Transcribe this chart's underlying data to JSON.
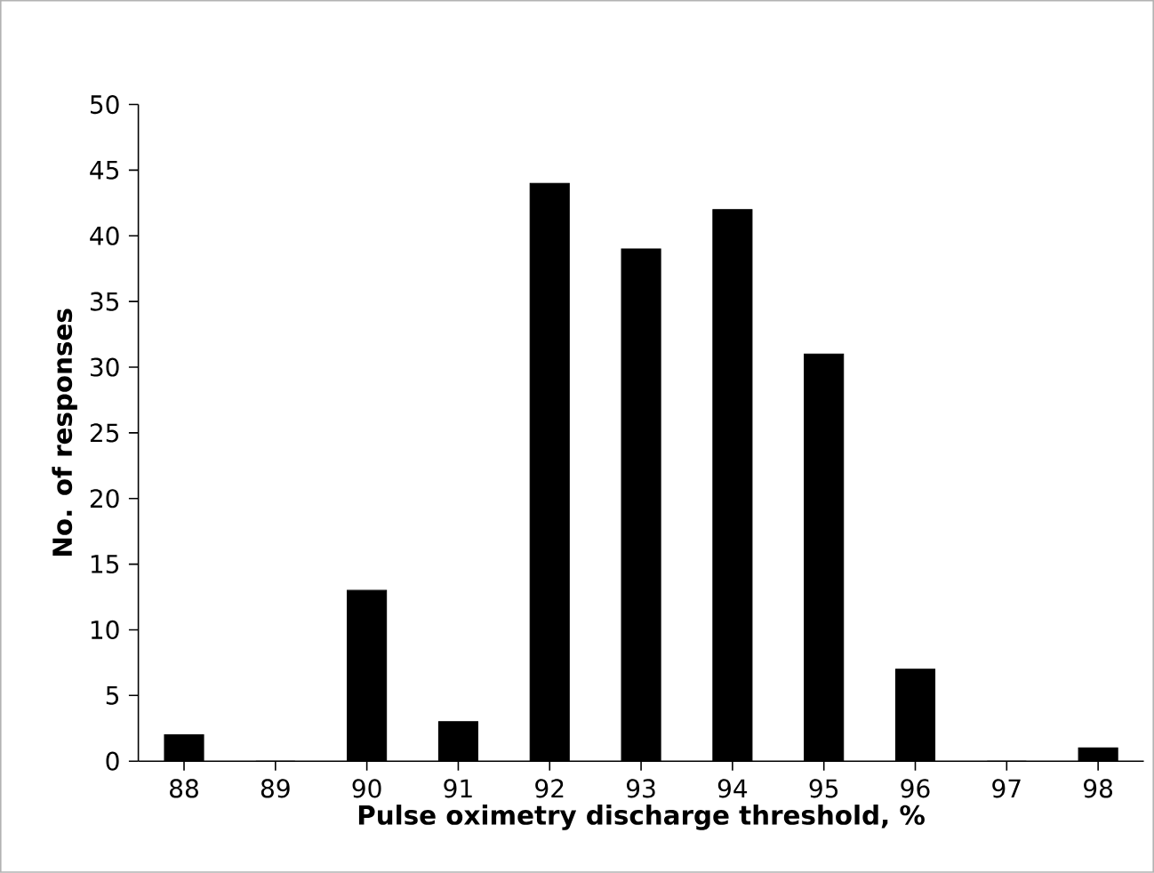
{
  "chart_data": {
    "type": "bar",
    "xlabel": "Pulse oximetry  discharge threshold, %",
    "ylabel": "No. of responses",
    "categories": [
      "88",
      "89",
      "90",
      "91",
      "92",
      "93",
      "94",
      "95",
      "96",
      "97",
      "98"
    ],
    "values": [
      2,
      0,
      13,
      3,
      44,
      39,
      42,
      31,
      7,
      0,
      1
    ],
    "color": "#000000",
    "ylim": [
      0,
      50
    ],
    "yticks": [
      0,
      5,
      10,
      15,
      20,
      25,
      30,
      35,
      40,
      45,
      50
    ]
  }
}
